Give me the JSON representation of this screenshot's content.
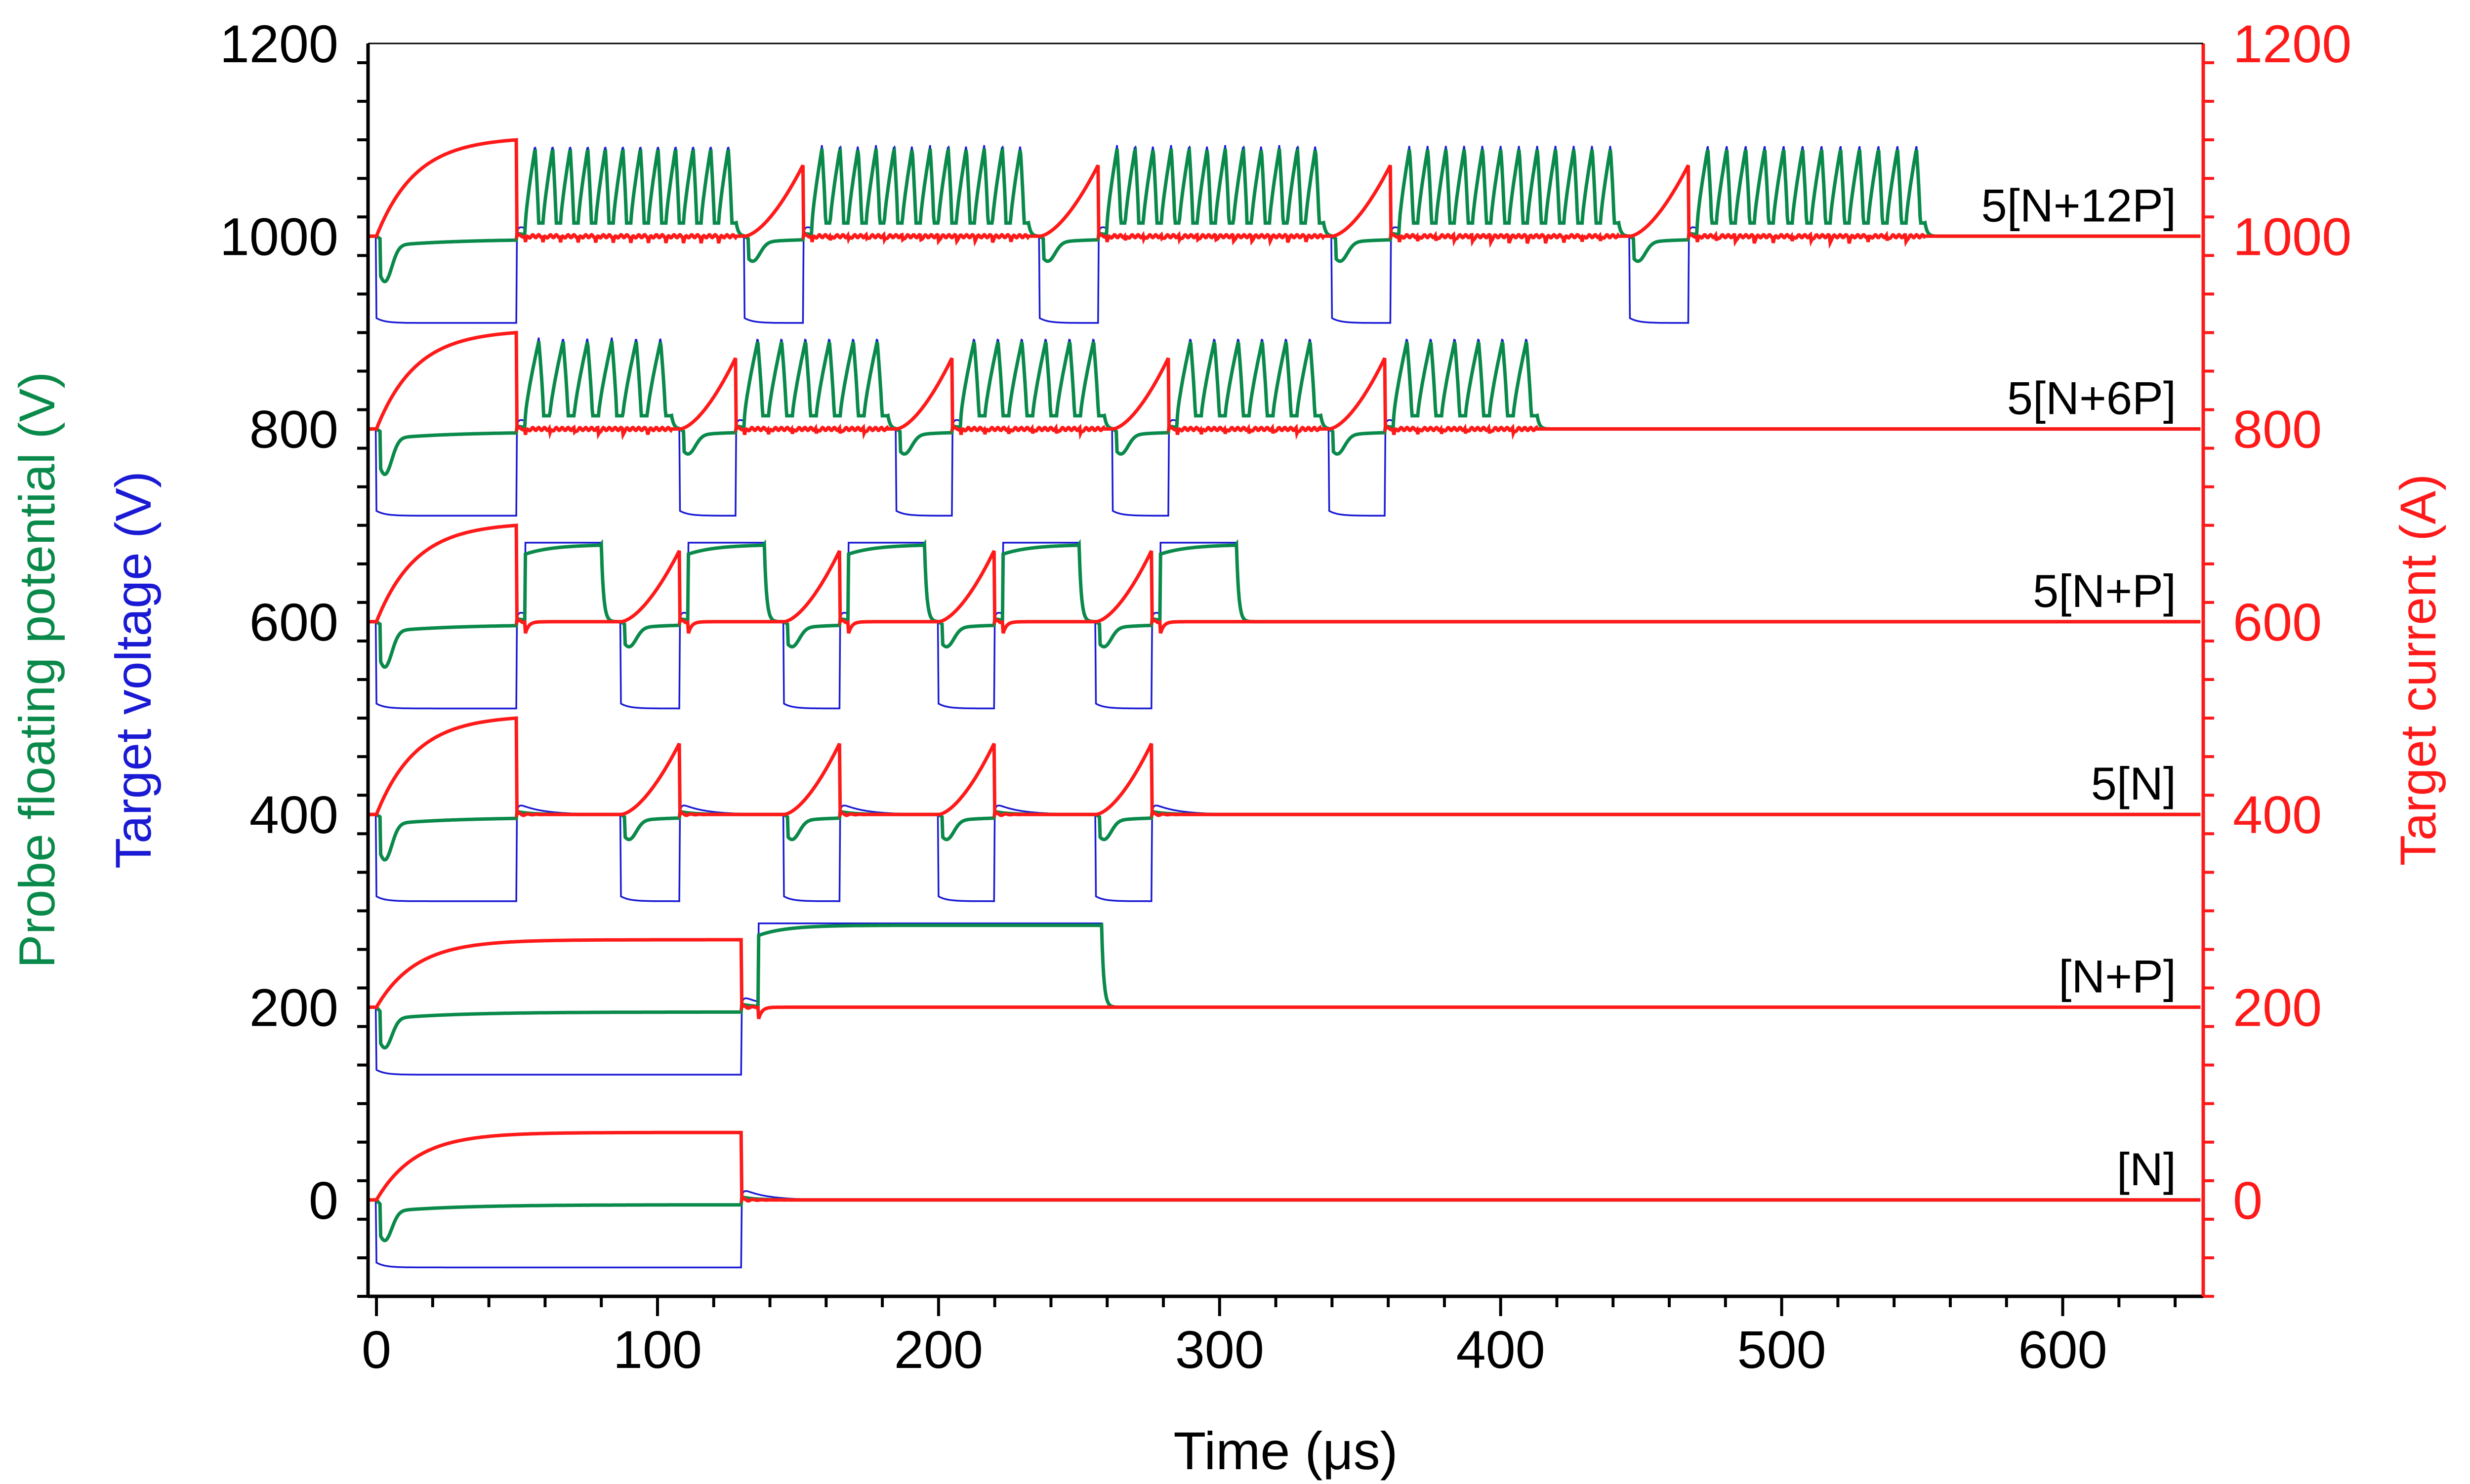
{
  "chart_data": {
    "type": "line",
    "title": "",
    "xlabel": "Time (μs)",
    "xlim": [
      -3,
      650
    ],
    "xticks": [
      0,
      100,
      200,
      300,
      400,
      500,
      600
    ],
    "xtick_labels": [
      "0",
      "100",
      "200",
      "300",
      "400",
      "500",
      "600"
    ],
    "ylim": [
      -100,
      1200
    ],
    "yticks": [
      0,
      200,
      400,
      600,
      800,
      1000,
      1200
    ],
    "ytick_labels": [
      "0",
      "200",
      "400",
      "600",
      "800",
      "1000",
      "1200"
    ],
    "ylabel_left_probe": "Probe floating potential (V)",
    "ylabel_left_target": "Target voltage (V)",
    "ylabel_right": "Target current (A)",
    "offset_step": 200,
    "colors": {
      "probe": "#0a8a4a",
      "voltage": "#1a1ad4",
      "current": "#ff1a1a",
      "axis": "#000000",
      "right_axis": "#ff1a1a"
    },
    "legend": {
      "probe": "Probe floating potential (V)",
      "voltage": "Target voltage (V)",
      "current": "Target current (A)"
    },
    "series": [
      {
        "name": "[N]",
        "offset": 0,
        "pulses": [
          {
            "start": 0,
            "end": 130,
            "type": "N"
          }
        ],
        "v_on": -70,
        "i_peak": 70,
        "f_min": -35,
        "f_on": -5
      },
      {
        "name": "[N+P]",
        "offset": 200,
        "pulses": [
          {
            "start": 0,
            "end": 130,
            "type": "N"
          },
          {
            "start": 136,
            "end": 258,
            "type": "P",
            "train": 0
          }
        ],
        "v_on": -70,
        "i_peak": 70,
        "f_min": -35,
        "f_on": -5,
        "p_level": 87
      },
      {
        "name": "5[N]",
        "offset": 400,
        "pulses": [
          {
            "start": 0,
            "end": 50,
            "type": "N"
          },
          {
            "start": 87,
            "end": 108,
            "type": "N"
          },
          {
            "start": 145,
            "end": 165,
            "type": "N"
          },
          {
            "start": 200,
            "end": 220,
            "type": "N"
          },
          {
            "start": 256,
            "end": 276,
            "type": "N"
          }
        ],
        "v_on": -90,
        "i_peak": 100,
        "f_min": -40,
        "f_on": -3
      },
      {
        "name": "5[N+P]",
        "offset": 600,
        "pulses": [
          {
            "start": 0,
            "end": 50,
            "type": "N"
          },
          {
            "start": 53,
            "end": 80,
            "type": "P",
            "train": 0
          },
          {
            "start": 87,
            "end": 108,
            "type": "N"
          },
          {
            "start": 111,
            "end": 138,
            "type": "P",
            "train": 0
          },
          {
            "start": 145,
            "end": 165,
            "type": "N"
          },
          {
            "start": 168,
            "end": 195,
            "type": "P",
            "train": 0
          },
          {
            "start": 200,
            "end": 220,
            "type": "N"
          },
          {
            "start": 223,
            "end": 250,
            "type": "P",
            "train": 0
          },
          {
            "start": 256,
            "end": 276,
            "type": "N"
          },
          {
            "start": 279,
            "end": 306,
            "type": "P",
            "train": 0
          }
        ],
        "v_on": -90,
        "i_peak": 100,
        "f_min": -40,
        "f_on": -3,
        "p_level": 82
      },
      {
        "name": "5[N+6P]",
        "offset": 800,
        "pulses": [
          {
            "start": 0,
            "end": 50,
            "type": "N"
          },
          {
            "start": 53,
            "end": 105,
            "type": "P",
            "train": 6
          },
          {
            "start": 108,
            "end": 128,
            "type": "N"
          },
          {
            "start": 131,
            "end": 182,
            "type": "P",
            "train": 6
          },
          {
            "start": 185,
            "end": 205,
            "type": "N"
          },
          {
            "start": 208,
            "end": 259,
            "type": "P",
            "train": 6
          },
          {
            "start": 262,
            "end": 282,
            "type": "N"
          },
          {
            "start": 285,
            "end": 336,
            "type": "P",
            "train": 6
          },
          {
            "start": 339,
            "end": 359,
            "type": "N"
          },
          {
            "start": 362,
            "end": 413,
            "type": "P",
            "train": 6
          }
        ],
        "v_on": -90,
        "i_peak": 100,
        "f_min": -40,
        "f_on": -3,
        "p_level": 95
      },
      {
        "name": "5[N+12P]",
        "offset": 1000,
        "pulses": [
          {
            "start": 0,
            "end": 50,
            "type": "N"
          },
          {
            "start": 53,
            "end": 128,
            "type": "P",
            "train": 12
          },
          {
            "start": 131,
            "end": 152,
            "type": "N"
          },
          {
            "start": 155,
            "end": 232,
            "type": "P",
            "train": 12
          },
          {
            "start": 236,
            "end": 257,
            "type": "N"
          },
          {
            "start": 260,
            "end": 337,
            "type": "P",
            "train": 12
          },
          {
            "start": 340,
            "end": 361,
            "type": "N"
          },
          {
            "start": 364,
            "end": 442,
            "type": "P",
            "train": 12
          },
          {
            "start": 446,
            "end": 467,
            "type": "N"
          },
          {
            "start": 470,
            "end": 551,
            "type": "P",
            "train": 12
          }
        ],
        "v_on": -90,
        "i_peak": 100,
        "f_min": -40,
        "f_on": -3,
        "p_level": 95
      }
    ]
  }
}
